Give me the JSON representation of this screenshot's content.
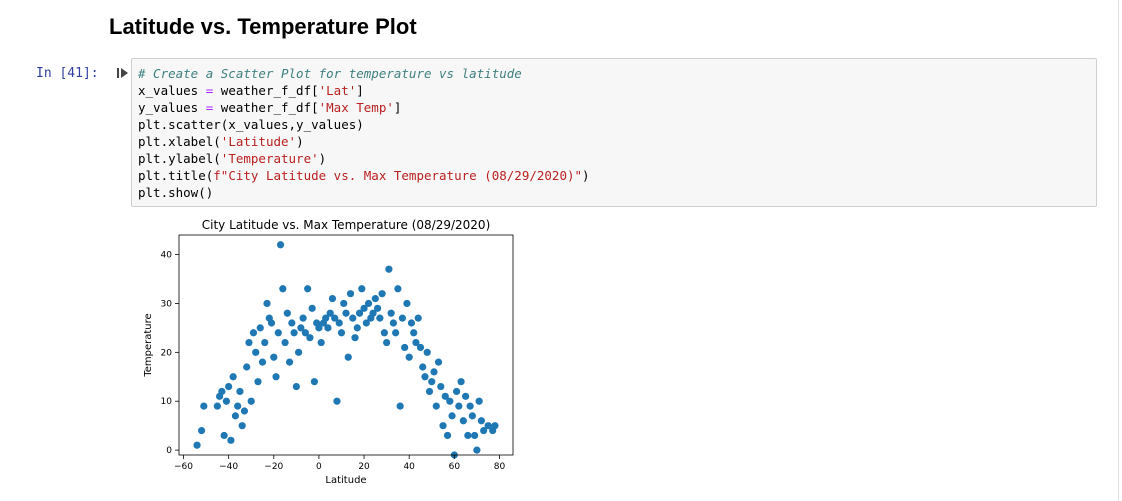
{
  "notebook": {
    "heading": "Latitude vs. Temperature Plot",
    "prompt": "In [41]:",
    "run_icon": "run-cell-icon",
    "code_lines": [
      [
        {
          "t": "cm",
          "v": "# Create a Scatter Plot for temperature vs latitude"
        }
      ],
      [
        {
          "t": "n",
          "v": "x_values "
        },
        {
          "t": "op",
          "v": "="
        },
        {
          "t": "n",
          "v": " weather_f_df["
        },
        {
          "t": "st",
          "v": "'Lat'"
        },
        {
          "t": "n",
          "v": "]"
        }
      ],
      [
        {
          "t": "n",
          "v": "y_values "
        },
        {
          "t": "op",
          "v": "="
        },
        {
          "t": "n",
          "v": " weather_f_df["
        },
        {
          "t": "st",
          "v": "'Max Temp'"
        },
        {
          "t": "n",
          "v": "]"
        }
      ],
      [
        {
          "t": "n",
          "v": "plt.scatter(x_values,y_values)"
        }
      ],
      [
        {
          "t": "n",
          "v": "plt.xlabel("
        },
        {
          "t": "st",
          "v": "'Latitude'"
        },
        {
          "t": "n",
          "v": ")"
        }
      ],
      [
        {
          "t": "n",
          "v": "plt.ylabel("
        },
        {
          "t": "st",
          "v": "'Temperature'"
        },
        {
          "t": "n",
          "v": ")"
        }
      ],
      [
        {
          "t": "n",
          "v": "plt.title("
        },
        {
          "t": "st",
          "v": "f\"City Latitude vs. Max Temperature (08/29/2020)\""
        },
        {
          "t": "n",
          "v": ")"
        }
      ],
      [
        {
          "t": "n",
          "v": "plt.show()"
        }
      ]
    ]
  },
  "chart_data": {
    "type": "scatter",
    "title": "City Latitude vs. Max Temperature (08/29/2020)",
    "xlabel": "Latitude",
    "ylabel": "Temperature",
    "xlim": [
      -62,
      86
    ],
    "ylim": [
      -1,
      44
    ],
    "xticks": [
      -60,
      -40,
      -20,
      0,
      20,
      40,
      60,
      80
    ],
    "yticks": [
      0,
      10,
      20,
      30,
      40
    ],
    "grid": false,
    "color": "#1f77b4",
    "points": [
      [
        -54,
        1
      ],
      [
        -52,
        4
      ],
      [
        -51,
        9
      ],
      [
        -45,
        9
      ],
      [
        -44,
        11
      ],
      [
        -43,
        12
      ],
      [
        -42,
        3
      ],
      [
        -41,
        10
      ],
      [
        -40,
        13
      ],
      [
        -39,
        2
      ],
      [
        -38,
        15
      ],
      [
        -37,
        7
      ],
      [
        -36,
        9
      ],
      [
        -35,
        12
      ],
      [
        -34,
        5
      ],
      [
        -33,
        8
      ],
      [
        -32,
        17
      ],
      [
        -31,
        22
      ],
      [
        -30,
        10
      ],
      [
        -29,
        24
      ],
      [
        -28,
        20
      ],
      [
        -27,
        14
      ],
      [
        -26,
        25
      ],
      [
        -25,
        18
      ],
      [
        -24,
        22
      ],
      [
        -23,
        30
      ],
      [
        -22,
        27
      ],
      [
        -21,
        26
      ],
      [
        -20,
        19
      ],
      [
        -19,
        15
      ],
      [
        -18,
        24
      ],
      [
        -17,
        42
      ],
      [
        -16,
        33
      ],
      [
        -15,
        22
      ],
      [
        -14,
        28
      ],
      [
        -13,
        18
      ],
      [
        -12,
        26
      ],
      [
        -11,
        24
      ],
      [
        -10,
        13
      ],
      [
        -9,
        20
      ],
      [
        -8,
        25
      ],
      [
        -7,
        27
      ],
      [
        -6,
        24
      ],
      [
        -5,
        33
      ],
      [
        -4,
        23
      ],
      [
        -3,
        29
      ],
      [
        -2,
        14
      ],
      [
        -1,
        26
      ],
      [
        0,
        25
      ],
      [
        1,
        22
      ],
      [
        2,
        26
      ],
      [
        3,
        27
      ],
      [
        4,
        25
      ],
      [
        5,
        28
      ],
      [
        6,
        31
      ],
      [
        7,
        27
      ],
      [
        8,
        10
      ],
      [
        9,
        26
      ],
      [
        10,
        24
      ],
      [
        11,
        30
      ],
      [
        12,
        28
      ],
      [
        13,
        19
      ],
      [
        14,
        32
      ],
      [
        15,
        27
      ],
      [
        16,
        23
      ],
      [
        17,
        25
      ],
      [
        18,
        28
      ],
      [
        19,
        33
      ],
      [
        20,
        29
      ],
      [
        21,
        26
      ],
      [
        22,
        30
      ],
      [
        23,
        27
      ],
      [
        24,
        28
      ],
      [
        25,
        31
      ],
      [
        26,
        29
      ],
      [
        27,
        27
      ],
      [
        28,
        32
      ],
      [
        29,
        24
      ],
      [
        30,
        22
      ],
      [
        31,
        37
      ],
      [
        32,
        28
      ],
      [
        33,
        26
      ],
      [
        34,
        24
      ],
      [
        35,
        33
      ],
      [
        36,
        9
      ],
      [
        37,
        27
      ],
      [
        38,
        21
      ],
      [
        39,
        30
      ],
      [
        40,
        19
      ],
      [
        41,
        26
      ],
      [
        42,
        24
      ],
      [
        43,
        22
      ],
      [
        44,
        27
      ],
      [
        45,
        21
      ],
      [
        46,
        17
      ],
      [
        47,
        15
      ],
      [
        48,
        20
      ],
      [
        49,
        12
      ],
      [
        50,
        14
      ],
      [
        51,
        16
      ],
      [
        52,
        9
      ],
      [
        53,
        18
      ],
      [
        54,
        13
      ],
      [
        55,
        5
      ],
      [
        56,
        11
      ],
      [
        57,
        3
      ],
      [
        58,
        10
      ],
      [
        59,
        7
      ],
      [
        60,
        -1
      ],
      [
        61,
        12
      ],
      [
        62,
        9
      ],
      [
        63,
        14
      ],
      [
        64,
        6
      ],
      [
        65,
        11
      ],
      [
        66,
        3
      ],
      [
        67,
        9
      ],
      [
        68,
        7
      ],
      [
        69,
        3
      ],
      [
        70,
        0
      ],
      [
        71,
        10
      ],
      [
        72,
        6
      ],
      [
        73,
        4
      ],
      [
        75,
        5
      ],
      [
        77,
        4
      ],
      [
        78,
        5
      ]
    ]
  }
}
